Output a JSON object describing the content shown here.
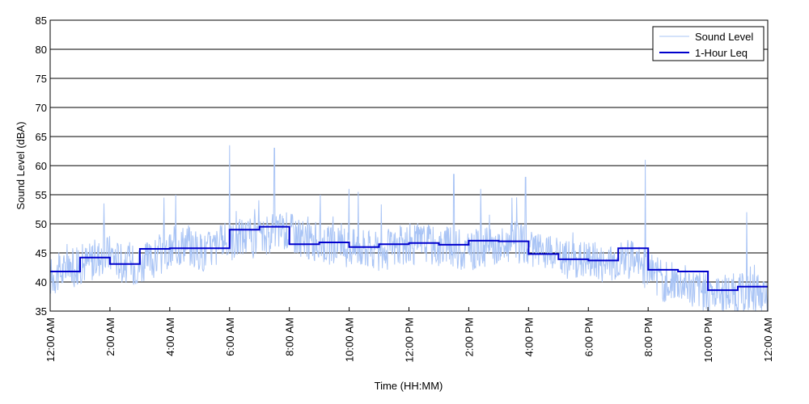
{
  "chart_data": {
    "type": "line",
    "xlabel": "Time (HH:MM)",
    "ylabel": "Sound Level (dBA)",
    "xlim": [
      0,
      24
    ],
    "ylim": [
      35,
      85
    ],
    "y_ticks": [
      35,
      40,
      45,
      50,
      55,
      60,
      65,
      70,
      75,
      80,
      85
    ],
    "x_ticks": [
      {
        "hour": 0,
        "label": "12:00 AM"
      },
      {
        "hour": 2,
        "label": "2:00 AM"
      },
      {
        "hour": 4,
        "label": "4:00 AM"
      },
      {
        "hour": 6,
        "label": "6:00 AM"
      },
      {
        "hour": 8,
        "label": "8:00 AM"
      },
      {
        "hour": 10,
        "label": "10:00 AM"
      },
      {
        "hour": 12,
        "label": "12:00 PM"
      },
      {
        "hour": 14,
        "label": "2:00 PM"
      },
      {
        "hour": 16,
        "label": "4:00 PM"
      },
      {
        "hour": 18,
        "label": "6:00 PM"
      },
      {
        "hour": 20,
        "label": "8:00 PM"
      },
      {
        "hour": 22,
        "label": "10:00 PM"
      },
      {
        "hour": 24,
        "label": "12:00 AM"
      }
    ],
    "grid": "horizontal",
    "legend_position": "top-right",
    "series": [
      {
        "name": "Sound Level",
        "color": "#a9c4f5",
        "style": "thin-noisy",
        "x": [
          0.0,
          0.5,
          1.0,
          1.5,
          2.0,
          2.5,
          3.0,
          3.5,
          4.0,
          4.5,
          5.0,
          5.5,
          6.0,
          6.5,
          7.0,
          7.5,
          8.0,
          8.5,
          9.0,
          9.5,
          10.0,
          10.5,
          11.0,
          11.5,
          12.0,
          12.5,
          13.0,
          13.5,
          14.0,
          14.5,
          15.0,
          15.5,
          16.0,
          16.5,
          17.0,
          17.5,
          18.0,
          18.5,
          19.0,
          19.5,
          20.0,
          20.5,
          21.0,
          21.5,
          22.0,
          22.5,
          23.0,
          23.5,
          24.0
        ],
        "values": [
          41,
          42,
          43,
          44,
          45,
          43,
          43,
          44,
          45,
          47,
          45,
          46,
          47,
          48,
          47,
          49,
          49,
          47,
          47,
          46,
          46,
          46,
          45,
          46,
          46,
          47,
          46,
          46,
          45,
          46,
          46,
          47,
          46,
          45,
          44,
          44,
          44,
          43,
          44,
          44,
          42,
          40,
          40,
          39,
          38,
          38,
          38,
          38,
          37
        ],
        "peaks": [
          {
            "x": 1.8,
            "y": 53.5
          },
          {
            "x": 3.8,
            "y": 54.5
          },
          {
            "x": 4.2,
            "y": 55.0
          },
          {
            "x": 6.0,
            "y": 63.5
          },
          {
            "x": 7.5,
            "y": 63.0
          },
          {
            "x": 10.0,
            "y": 56.0
          },
          {
            "x": 10.3,
            "y": 55.5
          },
          {
            "x": 13.5,
            "y": 58.5
          },
          {
            "x": 14.4,
            "y": 56.0
          },
          {
            "x": 15.9,
            "y": 58.0
          },
          {
            "x": 19.9,
            "y": 61.0
          },
          {
            "x": 23.3,
            "y": 52.0
          }
        ]
      },
      {
        "name": "1-Hour Leq",
        "color": "#0000cc",
        "style": "step",
        "hours": [
          0,
          1,
          2,
          3,
          4,
          5,
          6,
          7,
          8,
          9,
          10,
          11,
          12,
          13,
          14,
          15,
          16,
          17,
          18,
          19,
          20,
          21,
          22,
          23
        ],
        "values": [
          41.8,
          44.2,
          43.1,
          45.7,
          45.8,
          45.8,
          49.0,
          49.5,
          46.5,
          46.8,
          46.0,
          46.5,
          46.7,
          46.4,
          47.1,
          47.0,
          44.8,
          43.9,
          43.7,
          45.8,
          42.1,
          41.8,
          38.6,
          39.2
        ]
      }
    ]
  }
}
